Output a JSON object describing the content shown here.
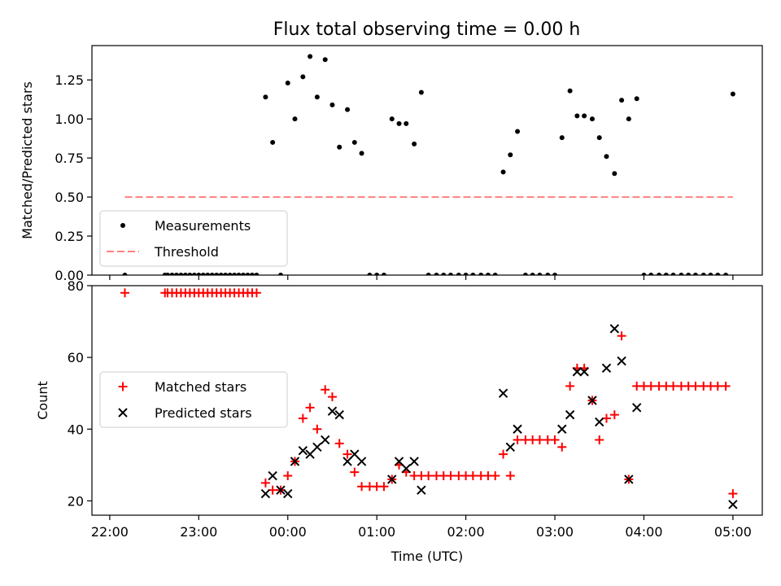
{
  "figure": {
    "title": "Flux total observing time = 0.00 h"
  },
  "chart_data": [
    {
      "type": "scatter",
      "title": "Flux total observing time = 0.00 h",
      "ylabel": "Matched/Predicted stars",
      "xlabel": "",
      "x_unit": "hours relative to 00:00 UTC",
      "xlim": [
        -2.2,
        5.33
      ],
      "ylim": [
        0,
        1.47
      ],
      "yticks": [
        "0.00",
        "0.25",
        "0.50",
        "0.75",
        "1.00",
        "1.25"
      ],
      "legend": "lower-left",
      "series": [
        {
          "name": "Measurements",
          "marker": "dot",
          "color": "#000000",
          "x": [
            -1.83,
            -1.38,
            -1.35,
            -1.3,
            -1.25,
            -1.2,
            -1.15,
            -1.1,
            -1.05,
            -1.0,
            -0.95,
            -0.9,
            -0.85,
            -0.8,
            -0.75,
            -0.7,
            -0.65,
            -0.6,
            -0.55,
            -0.5,
            -0.45,
            -0.4,
            -0.35,
            -0.25,
            -0.17,
            -0.08,
            0.0,
            0.08,
            0.17,
            0.25,
            0.33,
            0.42,
            0.5,
            0.58,
            0.67,
            0.75,
            0.83,
            0.92,
            1.0,
            1.08,
            1.17,
            1.25,
            1.33,
            1.42,
            1.5,
            1.58,
            1.67,
            1.75,
            1.83,
            1.92,
            2.0,
            2.08,
            2.17,
            2.25,
            2.33,
            2.42,
            2.5,
            2.58,
            2.67,
            2.75,
            2.83,
            2.92,
            3.0,
            3.08,
            3.17,
            3.25,
            3.33,
            3.42,
            3.5,
            3.58,
            3.67,
            3.75,
            3.83,
            3.92,
            4.0,
            4.08,
            4.17,
            4.25,
            4.33,
            4.42,
            4.5,
            4.58,
            4.67,
            4.75,
            4.83,
            4.92,
            5.0
          ],
          "y": [
            0,
            0,
            0,
            0,
            0,
            0,
            0,
            0,
            0,
            0,
            0,
            0,
            0,
            0,
            0,
            0,
            0,
            0,
            0,
            0,
            0,
            0,
            0,
            1.14,
            0.85,
            0,
            1.23,
            1.0,
            1.27,
            1.4,
            1.14,
            1.38,
            1.09,
            0.82,
            1.06,
            0.85,
            0.78,
            0,
            0,
            0,
            1.0,
            0.97,
            0.97,
            0.84,
            1.17,
            0,
            0,
            0,
            0,
            0,
            0,
            0,
            0,
            0,
            0,
            0.66,
            0.77,
            0.92,
            0,
            0,
            0,
            0,
            0,
            0.88,
            1.18,
            1.02,
            1.02,
            1.0,
            0.88,
            0.76,
            0.65,
            1.12,
            1.0,
            1.13,
            0,
            0,
            0,
            0,
            0,
            0,
            0,
            0,
            0,
            0,
            0,
            0,
            1.16
          ]
        },
        {
          "name": "Threshold",
          "marker": "dashed-line",
          "color": "#ff8080",
          "x": [
            -1.83,
            5.0
          ],
          "y": [
            0.5,
            0.5
          ]
        }
      ]
    },
    {
      "type": "scatter",
      "title": "",
      "ylabel": "Count",
      "xlabel": "Time (UTC)",
      "x_unit": "hours relative to 00:00 UTC",
      "xlim": [
        -2.2,
        5.33
      ],
      "ylim": [
        16,
        80
      ],
      "yticks": [
        "20",
        "40",
        "60",
        "80"
      ],
      "xticks": [
        {
          "value": -2,
          "label": "22:00"
        },
        {
          "value": -1,
          "label": "23:00"
        },
        {
          "value": 0,
          "label": "00:00"
        },
        {
          "value": 1,
          "label": "01:00"
        },
        {
          "value": 2,
          "label": "02:00"
        },
        {
          "value": 3,
          "label": "03:00"
        },
        {
          "value": 4,
          "label": "04:00"
        },
        {
          "value": 5,
          "label": "05:00"
        }
      ],
      "legend": "center-left",
      "series": [
        {
          "name": "Matched stars",
          "marker": "plus",
          "color": "#ff0000",
          "x": [
            -1.83,
            -1.38,
            -1.35,
            -1.3,
            -1.25,
            -1.2,
            -1.15,
            -1.1,
            -1.05,
            -1.0,
            -0.95,
            -0.9,
            -0.85,
            -0.8,
            -0.75,
            -0.7,
            -0.65,
            -0.6,
            -0.55,
            -0.5,
            -0.45,
            -0.4,
            -0.35,
            -0.25,
            -0.17,
            -0.08,
            0.0,
            0.08,
            0.17,
            0.25,
            0.33,
            0.42,
            0.5,
            0.58,
            0.67,
            0.75,
            0.83,
            0.92,
            1.0,
            1.08,
            1.17,
            1.25,
            1.33,
            1.42,
            1.5,
            1.58,
            1.67,
            1.75,
            1.83,
            1.92,
            2.0,
            2.08,
            2.17,
            2.25,
            2.33,
            2.42,
            2.5,
            2.58,
            2.67,
            2.75,
            2.83,
            2.92,
            3.0,
            3.08,
            3.17,
            3.25,
            3.33,
            3.42,
            3.5,
            3.58,
            3.67,
            3.75,
            3.83,
            3.92,
            4.0,
            4.08,
            4.17,
            4.25,
            4.33,
            4.42,
            4.5,
            4.58,
            4.67,
            4.75,
            4.83,
            4.92,
            5.0
          ],
          "y": [
            78,
            78,
            78,
            78,
            78,
            78,
            78,
            78,
            78,
            78,
            78,
            78,
            78,
            78,
            78,
            78,
            78,
            78,
            78,
            78,
            78,
            78,
            78,
            25,
            23,
            23,
            27,
            31,
            43,
            46,
            40,
            51,
            49,
            36,
            33,
            28,
            24,
            24,
            24,
            24,
            26,
            30,
            28,
            27,
            27,
            27,
            27,
            27,
            27,
            27,
            27,
            27,
            27,
            27,
            27,
            33,
            27,
            37,
            37,
            37,
            37,
            37,
            37,
            35,
            52,
            57,
            57,
            48,
            37,
            43,
            44,
            66,
            26,
            52,
            52,
            52,
            52,
            52,
            52,
            52,
            52,
            52,
            52,
            52,
            52,
            52,
            22
          ]
        },
        {
          "name": "Predicted stars",
          "marker": "x",
          "color": "#000000",
          "x": [
            -0.25,
            -0.17,
            -0.08,
            0.0,
            0.08,
            0.17,
            0.25,
            0.33,
            0.42,
            0.5,
            0.58,
            0.67,
            0.75,
            0.83,
            1.17,
            1.25,
            1.33,
            1.42,
            1.5,
            2.42,
            2.5,
            2.58,
            3.08,
            3.17,
            3.25,
            3.33,
            3.42,
            3.5,
            3.58,
            3.67,
            3.75,
            3.83,
            3.92,
            5.0
          ],
          "y": [
            22,
            27,
            23,
            22,
            31,
            34,
            33,
            35,
            37,
            45,
            44,
            31,
            33,
            31,
            26,
            31,
            29,
            31,
            23,
            50,
            35,
            40,
            40,
            44,
            56,
            56,
            48,
            42,
            57,
            68,
            59,
            26,
            46,
            19
          ]
        }
      ]
    }
  ]
}
